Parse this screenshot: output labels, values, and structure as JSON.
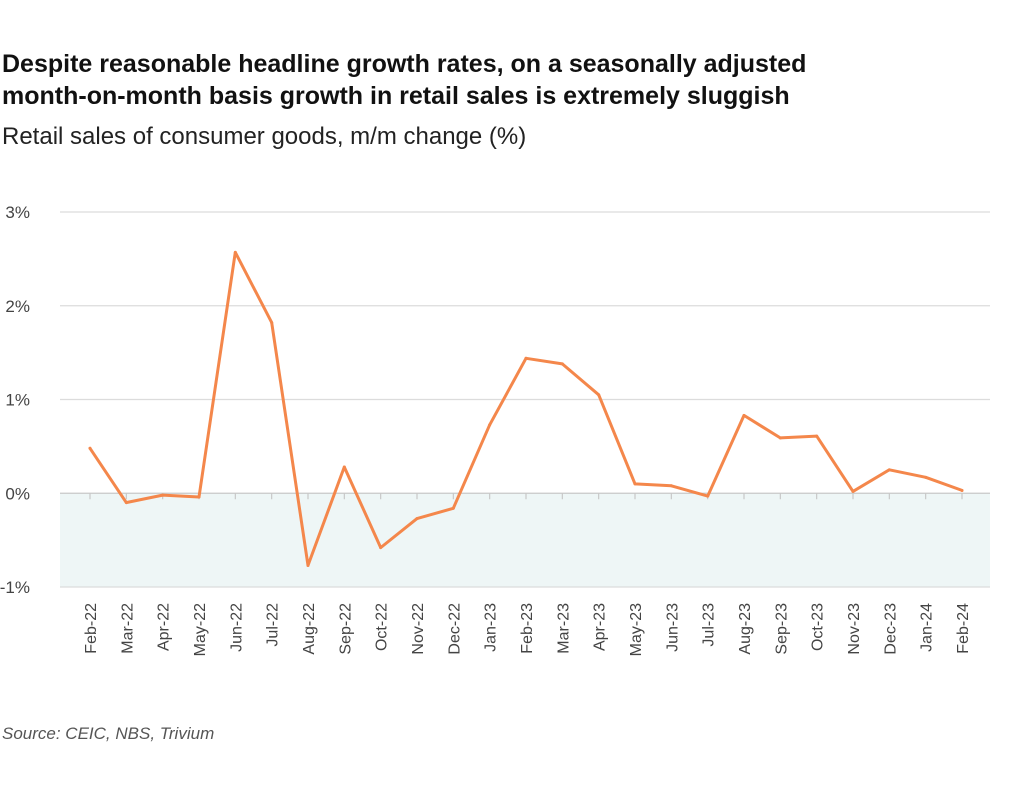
{
  "header": {
    "title_line1": "Despite reasonable headline growth rates, on a seasonally adjusted",
    "title_line2": "month-on-month basis growth in retail sales is extremely sluggish",
    "subtitle": "Retail sales of consumer goods, m/m change (%)"
  },
  "footer": {
    "source": "Source: CEIC, NBS, Trivium"
  },
  "colors": {
    "line": "#f4874b",
    "negative_band": "#eef6f6",
    "grid": "#dcdcdc"
  },
  "chart_data": {
    "type": "line",
    "title": "Despite reasonable headline growth rates, on a seasonally adjusted month-on-month basis growth in retail sales is extremely sluggish",
    "subtitle": "Retail sales of consumer goods, m/m change (%)",
    "xlabel": "",
    "ylabel": "",
    "ylim": [
      -1,
      3
    ],
    "y_ticks": [
      3,
      2,
      1,
      0,
      -1
    ],
    "y_tick_labels": [
      "3%",
      "2%",
      "1%",
      "0%",
      "-1%"
    ],
    "grid": true,
    "legend": "none",
    "negative_region_shaded": true,
    "categories": [
      "Feb-22",
      "Mar-22",
      "Apr-22",
      "May-22",
      "Jun-22",
      "Jul-22",
      "Aug-22",
      "Sep-22",
      "Oct-22",
      "Nov-22",
      "Dec-22",
      "Jan-23",
      "Feb-23",
      "Mar-23",
      "Apr-23",
      "May-23",
      "Jun-23",
      "Jul-23",
      "Aug-23",
      "Sep-23",
      "Oct-23",
      "Nov-23",
      "Dec-23",
      "Jan-24",
      "Feb-24"
    ],
    "series": [
      {
        "values": [
          0.48,
          -0.1,
          -0.02,
          -0.04,
          2.57,
          1.82,
          -0.77,
          0.28,
          -0.58,
          -0.27,
          -0.16,
          0.73,
          1.44,
          1.38,
          1.05,
          0.1,
          0.08,
          -0.03,
          0.83,
          0.59,
          0.61,
          0.02,
          0.25,
          0.17,
          0.03
        ]
      }
    ]
  }
}
